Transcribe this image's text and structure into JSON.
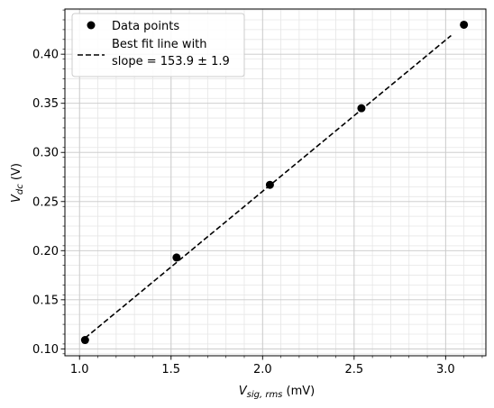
{
  "chart_data": {
    "type": "scatter",
    "title": "",
    "xlabel": {
      "main": "V",
      "sub": "sig, rms",
      "unit": " (mV)"
    },
    "ylabel": {
      "main": "V",
      "sub": "dc",
      "unit": " (V)"
    },
    "xlim": [
      0.92,
      3.22
    ],
    "ylim": [
      0.093,
      0.446
    ],
    "xticks": [
      1.0,
      1.5,
      2.0,
      2.5,
      3.0
    ],
    "xtick_labels": [
      "1.0",
      "1.5",
      "2.0",
      "2.5",
      "3.0"
    ],
    "yticks": [
      0.1,
      0.15,
      0.2,
      0.25,
      0.3,
      0.35,
      0.4
    ],
    "ytick_labels": [
      "0.10",
      "0.15",
      "0.20",
      "0.25",
      "0.30",
      "0.35",
      "0.40"
    ],
    "grid": true,
    "minor_grid": true,
    "legend_position": "top-left",
    "series": [
      {
        "name": "Data points",
        "kind": "scatter",
        "color": "#000000",
        "x": [
          1.03,
          1.53,
          2.04,
          2.54,
          3.1
        ],
        "y": [
          0.109,
          0.193,
          0.267,
          0.345,
          0.43
        ]
      },
      {
        "name": "Best fit line with",
        "name_line2": "slope = 153.9 ± 1.9",
        "kind": "line",
        "style": "dashed",
        "color": "#000000",
        "x": [
          1.03,
          3.03
        ],
        "y": [
          0.111,
          0.419
        ]
      }
    ]
  }
}
